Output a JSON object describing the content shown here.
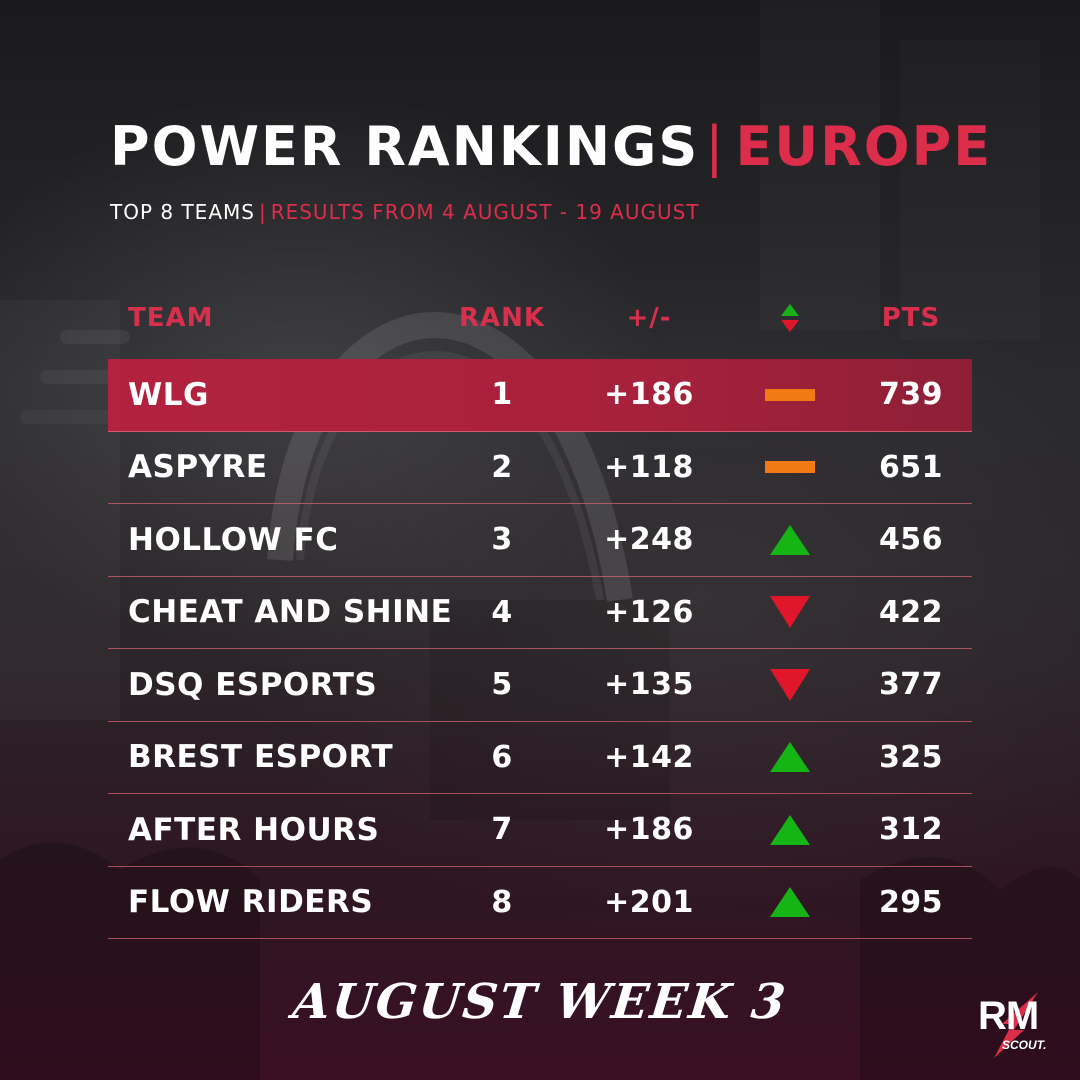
{
  "title": {
    "main": "POWER RANKINGS",
    "separator": "|",
    "region": "EUROPE"
  },
  "subtitle": {
    "prefix": "TOP 8 TEAMS",
    "separator": "|",
    "range": "RESULTS FROM 4 AUGUST - 19 AUGUST"
  },
  "table": {
    "headers": {
      "team": "TEAM",
      "rank": "RANK",
      "delta": "+/-",
      "pts": "PTS"
    },
    "rows": [
      {
        "team": "WLG",
        "rank": "1",
        "delta": "+186",
        "trend": "same",
        "pts": "739"
      },
      {
        "team": "ASPYRE",
        "rank": "2",
        "delta": "+118",
        "trend": "same",
        "pts": "651"
      },
      {
        "team": "HOLLOW FC",
        "rank": "3",
        "delta": "+248",
        "trend": "up",
        "pts": "456"
      },
      {
        "team": "CHEAT AND SHINE",
        "rank": "4",
        "delta": "+126",
        "trend": "down",
        "pts": "422"
      },
      {
        "team": "DSQ ESPORTS",
        "rank": "5",
        "delta": "+135",
        "trend": "down",
        "pts": "377"
      },
      {
        "team": "BREST ESPORT",
        "rank": "6",
        "delta": "+142",
        "trend": "up",
        "pts": "325"
      },
      {
        "team": "AFTER HOURS",
        "rank": "7",
        "delta": "+186",
        "trend": "up",
        "pts": "312"
      },
      {
        "team": "FLOW RIDERS",
        "rank": "8",
        "delta": "+201",
        "trend": "up",
        "pts": "295"
      }
    ]
  },
  "footer": {
    "label": "AUGUST WEEK 3"
  },
  "logo": {
    "text": "RM",
    "sub": "SCOUT."
  },
  "colors": {
    "accent": "#dc2e4a",
    "highlight_row": "#b3223f",
    "trend_up": "#16b516",
    "trend_down": "#e0162a",
    "trend_same": "#f27a12"
  },
  "icons": {
    "up": "triangle-up-icon",
    "down": "triangle-down-icon",
    "same": "dash-icon"
  }
}
